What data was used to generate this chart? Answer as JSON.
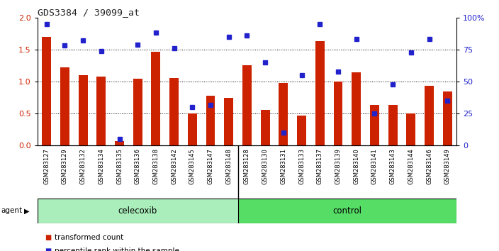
{
  "title": "GDS3384 / 39099_at",
  "samples": [
    "GSM283127",
    "GSM283129",
    "GSM283132",
    "GSM283134",
    "GSM283135",
    "GSM283136",
    "GSM283138",
    "GSM283142",
    "GSM283145",
    "GSM283147",
    "GSM283148",
    "GSM283128",
    "GSM283130",
    "GSM283131",
    "GSM283133",
    "GSM283137",
    "GSM283139",
    "GSM283140",
    "GSM283141",
    "GSM283143",
    "GSM283144",
    "GSM283146",
    "GSM283149"
  ],
  "red_values": [
    1.7,
    1.22,
    1.1,
    1.08,
    0.07,
    1.05,
    1.47,
    1.06,
    0.5,
    0.78,
    0.75,
    1.26,
    0.56,
    0.98,
    0.47,
    1.63,
    1.0,
    1.14,
    0.63,
    0.63,
    0.5,
    0.93,
    0.85
  ],
  "blue_values": [
    95,
    78,
    82,
    74,
    5,
    79,
    88,
    76,
    30,
    32,
    85,
    86,
    65,
    10,
    55,
    95,
    58,
    83,
    25,
    48,
    73,
    83,
    35
  ],
  "celecoxib_count": 11,
  "control_count": 12,
  "celecoxib_label": "celecoxib",
  "control_label": "control",
  "agent_label": "agent",
  "legend_red": "transformed count",
  "legend_blue": "percentile rank within the sample",
  "ylim_left": [
    0,
    2
  ],
  "ylim_right": [
    0,
    100
  ],
  "yticks_left": [
    0,
    0.5,
    1.0,
    1.5,
    2.0
  ],
  "yticks_right": [
    0,
    25,
    50,
    75,
    100
  ],
  "bar_color": "#cc2200",
  "dot_color": "#2222cc",
  "xtick_bg": "#cccccc",
  "agent_celecoxib_bg": "#aaeebb",
  "agent_control_bg": "#55dd66",
  "title_color": "#333333",
  "bar_width": 0.5
}
